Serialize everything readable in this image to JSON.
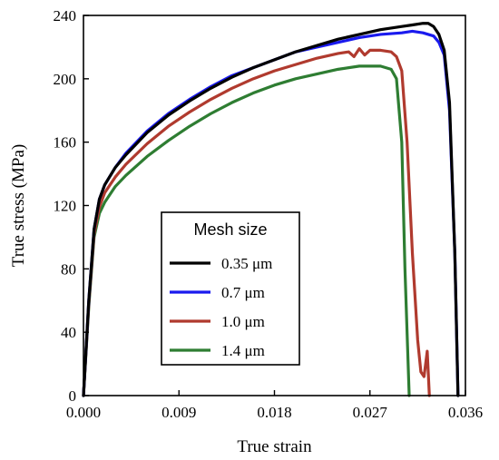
{
  "chart_data": {
    "type": "line",
    "title": "",
    "xlabel": "True strain",
    "ylabel": "True stress (MPa)",
    "xlim": [
      0,
      0.036
    ],
    "ylim": [
      0,
      240
    ],
    "x_ticks": [
      0.0,
      0.009,
      0.018,
      0.027,
      0.036
    ],
    "x_tick_labels": [
      "0.000",
      "0.009",
      "0.018",
      "0.027",
      "0.036"
    ],
    "y_ticks": [
      0,
      40,
      80,
      120,
      160,
      200,
      240
    ],
    "y_tick_labels": [
      "0",
      "40",
      "80",
      "120",
      "160",
      "200",
      "240"
    ],
    "grid": false,
    "legend": {
      "title": "Mesh size",
      "placement": "bottom-center"
    },
    "series": [
      {
        "name": "0.35 μm",
        "color": "#000000",
        "points": [
          [
            0,
            0
          ],
          [
            0.0005,
            60
          ],
          [
            0.001,
            105
          ],
          [
            0.0015,
            124
          ],
          [
            0.002,
            133
          ],
          [
            0.003,
            144
          ],
          [
            0.004,
            152
          ],
          [
            0.006,
            166
          ],
          [
            0.008,
            177
          ],
          [
            0.01,
            186
          ],
          [
            0.012,
            194
          ],
          [
            0.014,
            201
          ],
          [
            0.016,
            207
          ],
          [
            0.018,
            212
          ],
          [
            0.02,
            217
          ],
          [
            0.022,
            221
          ],
          [
            0.024,
            225
          ],
          [
            0.026,
            228
          ],
          [
            0.028,
            231
          ],
          [
            0.03,
            233
          ],
          [
            0.031,
            234
          ],
          [
            0.032,
            235
          ],
          [
            0.0325,
            235
          ],
          [
            0.033,
            233
          ],
          [
            0.0335,
            228
          ],
          [
            0.034,
            218
          ],
          [
            0.0345,
            185
          ],
          [
            0.035,
            90
          ],
          [
            0.0353,
            0
          ]
        ]
      },
      {
        "name": "0.7 μm",
        "color": "#1a1aee",
        "points": [
          [
            0,
            0
          ],
          [
            0.0005,
            60
          ],
          [
            0.001,
            105
          ],
          [
            0.0015,
            124
          ],
          [
            0.002,
            133
          ],
          [
            0.003,
            144
          ],
          [
            0.004,
            153
          ],
          [
            0.006,
            167
          ],
          [
            0.008,
            178
          ],
          [
            0.01,
            187
          ],
          [
            0.012,
            195
          ],
          [
            0.014,
            202
          ],
          [
            0.016,
            207
          ],
          [
            0.018,
            212
          ],
          [
            0.02,
            217
          ],
          [
            0.022,
            220
          ],
          [
            0.024,
            223
          ],
          [
            0.026,
            226
          ],
          [
            0.028,
            228
          ],
          [
            0.03,
            229
          ],
          [
            0.031,
            230
          ],
          [
            0.032,
            229
          ],
          [
            0.033,
            227
          ],
          [
            0.0335,
            223
          ],
          [
            0.034,
            215
          ],
          [
            0.0345,
            180
          ],
          [
            0.035,
            90
          ],
          [
            0.0353,
            0
          ]
        ]
      },
      {
        "name": "1.0 μm",
        "color": "#b03a2e",
        "points": [
          [
            0,
            0
          ],
          [
            0.0005,
            58
          ],
          [
            0.001,
            102
          ],
          [
            0.0015,
            119
          ],
          [
            0.002,
            128
          ],
          [
            0.003,
            138
          ],
          [
            0.004,
            146
          ],
          [
            0.006,
            159
          ],
          [
            0.008,
            170
          ],
          [
            0.01,
            179
          ],
          [
            0.012,
            187
          ],
          [
            0.014,
            194
          ],
          [
            0.016,
            200
          ],
          [
            0.018,
            205
          ],
          [
            0.02,
            209
          ],
          [
            0.022,
            213
          ],
          [
            0.024,
            216
          ],
          [
            0.025,
            217
          ],
          [
            0.0255,
            214
          ],
          [
            0.026,
            219
          ],
          [
            0.0265,
            215
          ],
          [
            0.027,
            218
          ],
          [
            0.028,
            218
          ],
          [
            0.029,
            217
          ],
          [
            0.0295,
            214
          ],
          [
            0.03,
            205
          ],
          [
            0.0305,
            160
          ],
          [
            0.031,
            90
          ],
          [
            0.0315,
            35
          ],
          [
            0.0318,
            15
          ],
          [
            0.0321,
            12
          ],
          [
            0.0324,
            28
          ],
          [
            0.0326,
            0
          ]
        ]
      },
      {
        "name": "1.4 μm",
        "color": "#2e7d32",
        "points": [
          [
            0,
            0
          ],
          [
            0.0005,
            56
          ],
          [
            0.001,
            100
          ],
          [
            0.0015,
            115
          ],
          [
            0.002,
            122
          ],
          [
            0.003,
            132
          ],
          [
            0.004,
            139
          ],
          [
            0.006,
            151
          ],
          [
            0.008,
            161
          ],
          [
            0.01,
            170
          ],
          [
            0.012,
            178
          ],
          [
            0.014,
            185
          ],
          [
            0.016,
            191
          ],
          [
            0.018,
            196
          ],
          [
            0.02,
            200
          ],
          [
            0.022,
            203
          ],
          [
            0.024,
            206
          ],
          [
            0.026,
            208
          ],
          [
            0.028,
            208
          ],
          [
            0.029,
            206
          ],
          [
            0.0295,
            200
          ],
          [
            0.03,
            160
          ],
          [
            0.0303,
            80
          ],
          [
            0.0307,
            0
          ]
        ]
      }
    ]
  }
}
